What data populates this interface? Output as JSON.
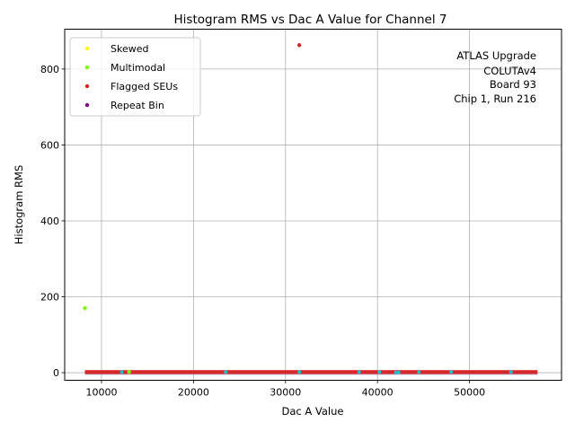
{
  "chart_data": {
    "type": "scatter",
    "title": "Histogram RMS vs Dac A Value for Channel 7",
    "xlabel": "Dac A Value",
    "ylabel": "Histogram RMS",
    "xlim": [
      6000,
      60000
    ],
    "ylim": [
      -20,
      905
    ],
    "x_ticks": [
      10000,
      20000,
      30000,
      40000,
      50000
    ],
    "y_ticks": [
      0,
      200,
      400,
      600,
      800
    ],
    "grid": true,
    "legend_position": "top-left",
    "annotation": [
      "ATLAS Upgrade",
      "COLUTAv4",
      "Board 93",
      "Chip 1, Run 216"
    ],
    "baseline": {
      "x_start": 8200,
      "x_end": 57400,
      "y": 1.5,
      "color": "#d62728"
    },
    "cyan_points": [
      {
        "x": 12200,
        "y": 1.5
      },
      {
        "x": 23500,
        "y": 1.5
      },
      {
        "x": 31500,
        "y": 1.5
      },
      {
        "x": 38000,
        "y": 1.5
      },
      {
        "x": 40200,
        "y": 1.5
      },
      {
        "x": 42000,
        "y": 0.5
      },
      {
        "x": 42300,
        "y": 1.0
      },
      {
        "x": 44500,
        "y": 1.5
      },
      {
        "x": 48000,
        "y": 2.0
      },
      {
        "x": 54500,
        "y": 1.5
      }
    ],
    "series": [
      {
        "name": "Skewed",
        "color": "#ffff00",
        "points": []
      },
      {
        "name": "Multimodal",
        "color": "#7cfc00",
        "points": [
          {
            "x": 8200,
            "y": 170
          },
          {
            "x": 13000,
            "y": 2
          }
        ]
      },
      {
        "name": "Flagged SEUs",
        "color": "#d62728",
        "points": [
          {
            "x": 31500,
            "y": 863
          }
        ]
      },
      {
        "name": "Repeat Bin",
        "color": "#800080",
        "points": []
      }
    ]
  }
}
